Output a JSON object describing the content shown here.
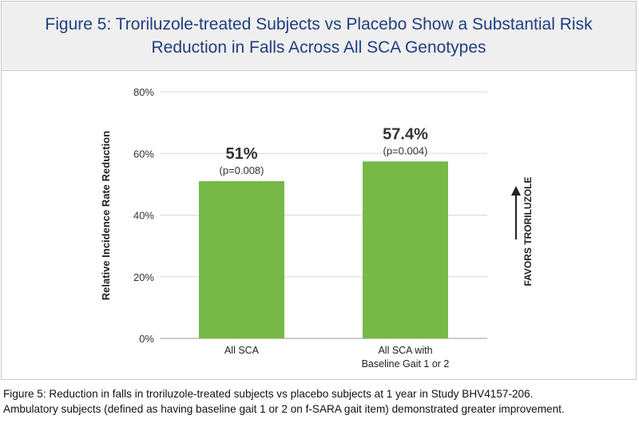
{
  "figure": {
    "title_line1": "Figure 5: Troriluzole-treated Subjects vs Placebo Show a Substantial Risk",
    "title_line2": "Reduction in Falls Across All SCA Genotypes",
    "caption_line1": "Figure 5: Reduction in falls in troriluzole-treated subjects vs placebo subjects at 1 year in Study BHV4157-206.",
    "caption_line2": "Ambulatory subjects (defined as having baseline gait 1 or 2 on f-SARA gait item) demonstrated greater improvement."
  },
  "chart_data": {
    "type": "bar",
    "ylabel": "Relative Incidence Rate Reduction",
    "ylim": [
      0,
      80
    ],
    "yticks": [
      0,
      20,
      40,
      60,
      80
    ],
    "ytick_labels": [
      "0%",
      "20%",
      "40%",
      "60%",
      "80%"
    ],
    "grid": true,
    "bar_color": "#76b947",
    "categories": [
      [
        "All SCA"
      ],
      [
        "All SCA with",
        "Baseline Gait 1 or 2"
      ]
    ],
    "values": [
      51,
      57.4
    ],
    "value_labels": [
      "51%",
      "57.4%"
    ],
    "p_value_labels": [
      "(p=0.008)",
      "(p=0.004)"
    ],
    "annotation": "FAVORS TRORILUZOLE"
  }
}
